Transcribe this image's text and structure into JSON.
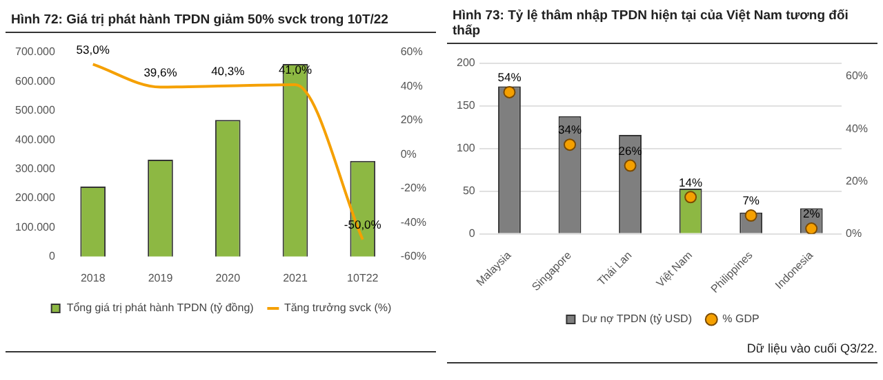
{
  "chart_data": [
    {
      "type": "bar",
      "title": "Hình 72: Giá trị phát hành TPDN giảm 50% svck trong 10T/22",
      "categories": [
        "2018",
        "2019",
        "2020",
        "2021",
        "10T22"
      ],
      "series": [
        {
          "name": "Tổng giá trị phát hành TPDN (tỷ đồng)",
          "color": "#8db843",
          "values": [
            240000,
            332000,
            468000,
            660000,
            328000
          ]
        },
        {
          "name": "Tăng trưởng svck (%)",
          "type": "line",
          "axis": "y2",
          "color": "#f5a000",
          "values": [
            53.0,
            39.6,
            40.3,
            41.0,
            -50.0
          ],
          "value_labels": [
            "53,0%",
            "39,6%",
            "40,3%",
            "41,0%",
            "-50,0%"
          ]
        }
      ],
      "ylim": [
        0,
        700000
      ],
      "yticks": [
        {
          "value": 0,
          "label": "0"
        },
        {
          "value": 100000,
          "label": "100.000"
        },
        {
          "value": 200000,
          "label": "200.000"
        },
        {
          "value": 300000,
          "label": "300.000"
        },
        {
          "value": 400000,
          "label": "400.000"
        },
        {
          "value": 500000,
          "label": "500.000"
        },
        {
          "value": 600000,
          "label": "600.000"
        },
        {
          "value": 700000,
          "label": "700.000"
        }
      ],
      "y2lim": [
        -60,
        60
      ],
      "y2ticks": [
        {
          "value": -60,
          "label": "-60%"
        },
        {
          "value": -40,
          "label": "-40%"
        },
        {
          "value": -20,
          "label": "-20%"
        },
        {
          "value": 0,
          "label": "0%"
        },
        {
          "value": 20,
          "label": "20%"
        },
        {
          "value": 40,
          "label": "40%"
        },
        {
          "value": 60,
          "label": "60%"
        }
      ],
      "grid": false,
      "legend": "bottom"
    },
    {
      "type": "bar",
      "title": "Hình 73: Tỷ lệ thâm nhập TPDN hiện tại của Việt Nam tương đối thấp",
      "categories": [
        "Malaysia",
        "Singapore",
        "Thái Lan",
        "Việt Nam",
        "Philippines",
        "Indonesia"
      ],
      "series": [
        {
          "name": "Dư nợ TPDN (tỷ USD)",
          "color": "#7f7f7f",
          "colors": [
            "#7f7f7f",
            "#7f7f7f",
            "#7f7f7f",
            "#8db843",
            "#7f7f7f",
            "#7f7f7f"
          ],
          "values": [
            173,
            138,
            116,
            53,
            25,
            30
          ]
        },
        {
          "name": "% GDP",
          "type": "scatter",
          "axis": "y2",
          "color": "#f5a000",
          "values": [
            54,
            34,
            26,
            14,
            7,
            2
          ],
          "value_labels": [
            "54%",
            "34%",
            "26%",
            "14%",
            "7%",
            "2%"
          ]
        }
      ],
      "ylim": [
        0,
        200
      ],
      "yticks": [
        0,
        50,
        100,
        150,
        200
      ],
      "y2lim": [
        0,
        65
      ],
      "y2ticks": [
        {
          "value": 0,
          "label": "0%"
        },
        {
          "value": 20,
          "label": "20%"
        },
        {
          "value": 40,
          "label": "40%"
        },
        {
          "value": 60,
          "label": "60%"
        }
      ],
      "grid": "y",
      "legend": "bottom",
      "marker": "circle",
      "annotations": [
        "Dữ liệu vào cuối Q3/22."
      ]
    }
  ]
}
